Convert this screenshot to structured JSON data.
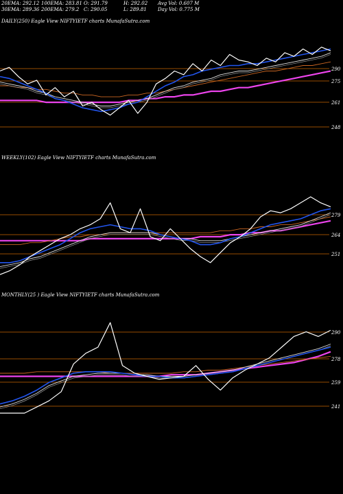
{
  "header": {
    "row1": [
      {
        "label": "20EMA:",
        "value": "292.12"
      },
      {
        "label": "100EMA:",
        "value": "283.81"
      },
      {
        "label": "O:",
        "value": "291.79"
      },
      {
        "label": "H:",
        "value": "292.02"
      },
      {
        "label": "Avg Vol:",
        "value": "0.607 M"
      }
    ],
    "row2": [
      {
        "label": "30EMA:",
        "value": "289.36"
      },
      {
        "label": "200EMA:",
        "value": "279.2"
      },
      {
        "label": "C:",
        "value": "290.05"
      },
      {
        "label": "L:",
        "value": "289.81"
      },
      {
        "label": "Day Vol:",
        "value": "0.775 M"
      }
    ]
  },
  "colors": {
    "background": "#000000",
    "grid": "#cc6600",
    "price": "#ffffff",
    "ema20": "#2255ee",
    "ema30": "#dddddd",
    "ema100": "#cc6622",
    "ema200": "#ee44ee"
  },
  "chart_data": [
    {
      "type": "line",
      "title": "DAILY(250) Eagle  View  NIFTYIETF charts MunafaSutra.com",
      "yticks": [
        "290",
        "275",
        "261",
        "248"
      ],
      "ylim": [
        243,
        296
      ],
      "price": [
        279,
        281,
        276,
        272,
        274,
        266,
        270,
        265,
        268,
        260,
        262,
        258,
        255,
        259,
        263,
        256,
        262,
        272,
        275,
        279,
        277,
        283,
        279,
        285,
        282,
        288,
        285,
        284,
        282,
        286,
        284,
        289,
        287,
        291,
        288,
        292,
        290
      ],
      "ema20": [
        276,
        275,
        273,
        271,
        269,
        267,
        264,
        263,
        261,
        259,
        258,
        257,
        258,
        259,
        261,
        262,
        265,
        268,
        271,
        273,
        276,
        277,
        279,
        280,
        281,
        282,
        282,
        283,
        283,
        284,
        285,
        286,
        287,
        288,
        289,
        290,
        291
      ],
      "ema30": [
        273,
        272,
        271,
        270,
        268,
        267,
        265,
        264,
        263,
        262,
        261,
        260,
        260,
        261,
        262,
        263,
        264,
        266,
        268,
        270,
        271,
        273,
        274,
        275,
        277,
        278,
        279,
        279,
        280,
        281,
        282,
        283,
        284,
        285,
        286,
        287,
        289
      ],
      "ema100": [
        271,
        271,
        270,
        270,
        269,
        269,
        268,
        267,
        267,
        266,
        266,
        265,
        265,
        265,
        266,
        266,
        267,
        267,
        268,
        269,
        270,
        271,
        272,
        273,
        274,
        275,
        276,
        277,
        278,
        279,
        279,
        280,
        281,
        282,
        282,
        283,
        284
      ],
      "ema200": [
        263,
        263,
        263,
        263,
        263,
        262,
        262,
        262,
        262,
        262,
        262,
        262,
        262,
        262,
        263,
        263,
        264,
        264,
        265,
        265,
        266,
        266,
        267,
        268,
        268,
        269,
        270,
        270,
        271,
        272,
        273,
        274,
        275,
        276,
        277,
        278,
        279
      ]
    },
    {
      "type": "line",
      "title": "WEEKLY(102) Eagle  View  NIFTYIETF charts MunafaSutra.com",
      "yticks": [
        "279",
        "264",
        "251"
      ],
      "ylim": [
        245,
        287
      ],
      "price": [
        247,
        249,
        252,
        256,
        259,
        262,
        265,
        267,
        270,
        272,
        275,
        283,
        270,
        268,
        280,
        266,
        264,
        270,
        265,
        260,
        256,
        253,
        258,
        263,
        266,
        270,
        276,
        279,
        278,
        280,
        283,
        286,
        283,
        281
      ],
      "ema20": [
        253,
        253,
        254,
        256,
        258,
        260,
        262,
        265,
        268,
        270,
        271,
        272,
        271,
        270,
        270,
        269,
        267,
        266,
        265,
        264,
        262,
        262,
        263,
        265,
        266,
        268,
        270,
        272,
        273,
        274,
        275,
        277,
        279,
        280
      ],
      "ema30": [
        251,
        252,
        253,
        255,
        256,
        258,
        260,
        262,
        264,
        266,
        267,
        268,
        268,
        268,
        268,
        268,
        267,
        266,
        265,
        265,
        264,
        264,
        264,
        265,
        266,
        267,
        268,
        269,
        270,
        271,
        272,
        274,
        276,
        278
      ],
      "ema100": [
        262,
        262,
        262,
        263,
        263,
        264,
        265,
        266,
        266,
        267,
        267,
        268,
        268,
        268,
        268,
        268,
        268,
        268,
        268,
        268,
        268,
        268,
        269,
        269,
        270,
        270,
        271,
        271,
        272,
        272,
        273,
        274,
        275,
        276
      ],
      "ema200": [
        264,
        264,
        264,
        264,
        264,
        264,
        264,
        264,
        264,
        265,
        265,
        265,
        265,
        265,
        265,
        265,
        265,
        265,
        265,
        265,
        266,
        266,
        266,
        267,
        267,
        268,
        268,
        269,
        269,
        270,
        271,
        272,
        273,
        274
      ]
    },
    {
      "type": "line",
      "title": "MONTHLY(25                 ) Eagle  View  NIFTYIETF charts MunafaSutra.com",
      "yticks": [
        "290",
        "278",
        "259",
        "241"
      ],
      "ylim": [
        228,
        296
      ],
      "price": [
        236,
        236,
        236,
        240,
        244,
        250,
        268,
        275,
        279,
        295,
        267,
        262,
        260,
        258,
        259,
        260,
        267,
        258,
        251,
        259,
        264,
        268,
        272,
        279,
        286,
        289,
        286,
        290
      ],
      "ema20": [
        242,
        244,
        247,
        251,
        256,
        259,
        262,
        263,
        263,
        263,
        262,
        261,
        260,
        260,
        259,
        259,
        260,
        261,
        262,
        263,
        265,
        267,
        269,
        271,
        273,
        275,
        277,
        279
      ],
      "ema30": [
        240,
        242,
        245,
        249,
        254,
        257,
        260,
        261,
        262,
        262,
        262,
        261,
        261,
        260,
        260,
        260,
        261,
        262,
        263,
        264,
        266,
        268,
        270,
        272,
        274,
        276,
        278,
        281
      ],
      "ema100": [
        262,
        262,
        262,
        263,
        263,
        263,
        263,
        263,
        263,
        262,
        262,
        262,
        262,
        262,
        262,
        263,
        263,
        264,
        264,
        265,
        266,
        267,
        268,
        269,
        270,
        271,
        272,
        273
      ],
      "ema200": [
        260,
        260,
        260,
        260,
        260,
        260,
        260,
        260,
        260,
        260,
        260,
        260,
        260,
        260,
        261,
        261,
        261,
        262,
        263,
        264,
        265,
        266,
        267,
        268,
        269,
        271,
        273,
        276
      ]
    }
  ]
}
